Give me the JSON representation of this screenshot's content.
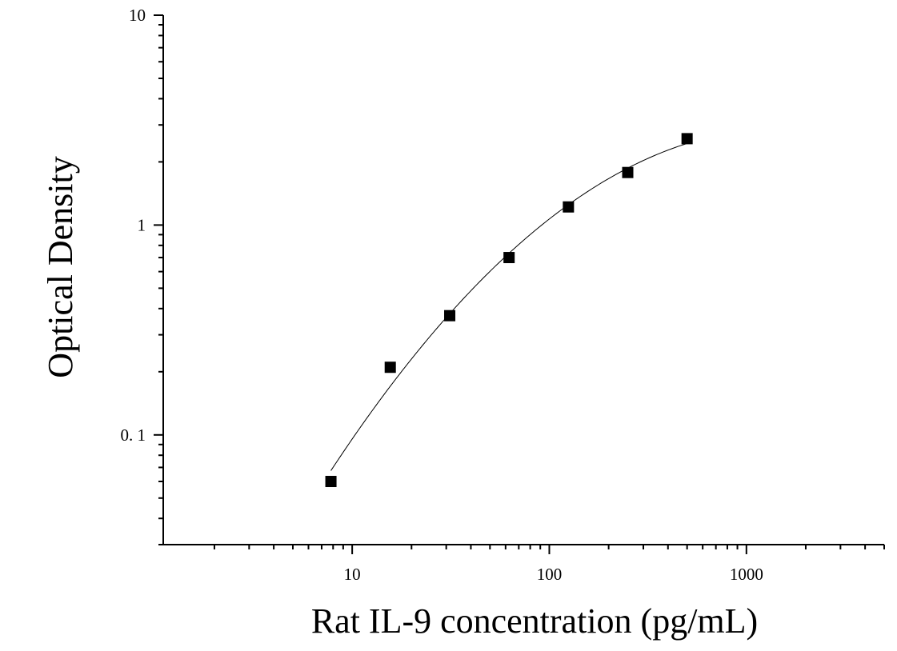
{
  "chart_data": {
    "type": "scatter",
    "title": "",
    "xlabel": "Rat IL-9 concentration (pg/mL)",
    "ylabel": "Optical Density",
    "x_scale": "log",
    "y_scale": "log",
    "xlim": [
      1.1,
      5000
    ],
    "ylim": [
      0.03,
      10
    ],
    "x_ticks": [
      10,
      100,
      1000
    ],
    "x_tick_labels": [
      "10",
      "100",
      "1000"
    ],
    "y_ticks": [
      0.1,
      1,
      10
    ],
    "y_tick_labels": [
      "0. 1",
      "1",
      "10"
    ],
    "grid": false,
    "legend": "none",
    "marker": "square",
    "marker_color": "#000000",
    "line_color": "#000000",
    "series": [
      {
        "x": [
          7.8,
          15.6,
          31.25,
          62.5,
          125,
          250,
          500
        ],
        "y": [
          0.06,
          0.21,
          0.37,
          0.7,
          1.22,
          1.78,
          2.58
        ]
      }
    ],
    "fit_curve": true
  }
}
